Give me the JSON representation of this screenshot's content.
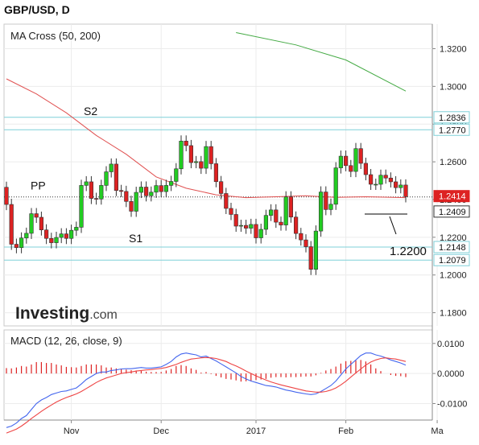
{
  "header": {
    "title": "GBP/USD, D"
  },
  "main_panel": {
    "indicator_label": "MA Cross (50, 200)",
    "watermark_bold": "Investing",
    "watermark_light": ".com"
  },
  "macd_panel": {
    "indicator_label": "MACD (12, 26, close, 9)"
  },
  "colors": {
    "up_candle": "#22cc22",
    "down_candle": "#dd2222",
    "ma50": "#e05050",
    "ma200": "#44aa44",
    "level_line": "#7fd0d8",
    "macd_line": "#4466ee",
    "signal_line": "#ee4444",
    "histogram": "#dd2222",
    "price_badge": "#dd2222"
  },
  "chart_data": [
    {
      "type": "candlestick",
      "title": "GBP/USD, D",
      "indicator": "MA Cross (50, 200)",
      "x_ticks": [
        "Nov",
        "Dec",
        "2017",
        "Feb",
        "Ma"
      ],
      "y_ticks": [
        "1.3200",
        "1.3000",
        "1.2800",
        "1.2600",
        "1.2400",
        "1.2200",
        "1.2000",
        "1.1800"
      ],
      "ylim": [
        1.173,
        1.333
      ],
      "grid": true,
      "closes": [
        1.2374,
        1.2163,
        1.2145,
        1.2196,
        1.2221,
        1.2325,
        1.2306,
        1.2239,
        1.2194,
        1.2171,
        1.2199,
        1.2218,
        1.2194,
        1.2237,
        1.2253,
        1.2475,
        1.2494,
        1.2406,
        1.2403,
        1.2475,
        1.2547,
        1.2588,
        1.2448,
        1.2443,
        1.239,
        1.2338,
        1.2438,
        1.2466,
        1.242,
        1.2439,
        1.2474,
        1.2442,
        1.2475,
        1.2496,
        1.2563,
        1.271,
        1.2686,
        1.2596,
        1.2601,
        1.2566,
        1.2681,
        1.259,
        1.2495,
        1.2432,
        1.2353,
        1.2321,
        1.2259,
        1.2263,
        1.2248,
        1.2268,
        1.2197,
        1.2242,
        1.2316,
        1.2345,
        1.228,
        1.2265,
        1.2414,
        1.2307,
        1.222,
        1.2186,
        1.215,
        1.203,
        1.2233,
        1.244,
        1.2347,
        1.2375,
        1.2568,
        1.263,
        1.258,
        1.2549,
        1.267,
        1.2592,
        1.2532,
        1.2481,
        1.2481,
        1.2529,
        1.2514,
        1.2494,
        1.2463,
        1.2477,
        1.2415
      ],
      "opens": [
        1.2465,
        1.2374,
        1.2163,
        1.2145,
        1.2196,
        1.2221,
        1.2325,
        1.2306,
        1.2239,
        1.2194,
        1.2171,
        1.2199,
        1.2218,
        1.2194,
        1.2237,
        1.2253,
        1.2475,
        1.2494,
        1.2406,
        1.2403,
        1.2475,
        1.2547,
        1.2588,
        1.2448,
        1.2443,
        1.239,
        1.2338,
        1.2438,
        1.2466,
        1.242,
        1.2439,
        1.2474,
        1.2442,
        1.2475,
        1.2496,
        1.2563,
        1.271,
        1.2686,
        1.2596,
        1.2601,
        1.2566,
        1.2681,
        1.259,
        1.2495,
        1.2432,
        1.2353,
        1.2321,
        1.2259,
        1.2263,
        1.2248,
        1.2268,
        1.2197,
        1.2242,
        1.2316,
        1.2345,
        1.228,
        1.2265,
        1.2414,
        1.2307,
        1.222,
        1.2186,
        1.215,
        1.203,
        1.2233,
        1.244,
        1.2347,
        1.2375,
        1.2568,
        1.263,
        1.258,
        1.2549,
        1.267,
        1.2592,
        1.2532,
        1.2481,
        1.2481,
        1.2529,
        1.2514,
        1.2494,
        1.2463,
        1.2477
      ],
      "ma50": [
        {
          "x": 0,
          "y": 1.304
        },
        {
          "x": 6,
          "y": 1.296
        },
        {
          "x": 12,
          "y": 1.286
        },
        {
          "x": 18,
          "y": 1.274
        },
        {
          "x": 24,
          "y": 1.264
        },
        {
          "x": 30,
          "y": 1.252
        },
        {
          "x": 36,
          "y": 1.246
        },
        {
          "x": 42,
          "y": 1.2425
        },
        {
          "x": 48,
          "y": 1.241
        },
        {
          "x": 54,
          "y": 1.2415
        },
        {
          "x": 60,
          "y": 1.242
        },
        {
          "x": 66,
          "y": 1.2412
        },
        {
          "x": 72,
          "y": 1.2415
        },
        {
          "x": 80,
          "y": 1.241
        }
      ],
      "ma200": [
        {
          "x": 46,
          "y": 1.3285
        },
        {
          "x": 58,
          "y": 1.322
        },
        {
          "x": 68,
          "y": 1.314
        },
        {
          "x": 80,
          "y": 1.2975
        }
      ],
      "support_resistance": [
        {
          "label": "S2",
          "value": 1.2836
        },
        {
          "label": "",
          "value": 1.277
        },
        {
          "label": "PP",
          "value": 1.2414
        },
        {
          "label": "S1",
          "value": 1.2148
        },
        {
          "label": "",
          "value": 1.2079
        }
      ],
      "price_labels": [
        "1.2836",
        "1.2770",
        "1.2414",
        "1.2409",
        "1.2148",
        "1.2079"
      ],
      "annotation": "1.2200"
    },
    {
      "type": "line",
      "title": "MACD (12, 26, close, 9)",
      "y_ticks": [
        "0.0100",
        "0.0000",
        "-0.0100"
      ],
      "ylim": [
        -0.0155,
        0.0145
      ],
      "macd": [
        -0.018,
        -0.0175,
        -0.0165,
        -0.015,
        -0.014,
        -0.012,
        -0.01,
        -0.0088,
        -0.008,
        -0.007,
        -0.0065,
        -0.006,
        -0.0058,
        -0.0053,
        -0.0048,
        -0.0035,
        -0.002,
        -0.001,
        0.0,
        0.0005,
        0.0005,
        0.001,
        0.0012,
        0.0015,
        0.0016,
        0.0016,
        0.0018,
        0.002,
        0.0018,
        0.0018,
        0.002,
        0.0022,
        0.003,
        0.004,
        0.0055,
        0.0065,
        0.0068,
        0.0065,
        0.0062,
        0.0055,
        0.0058,
        0.005,
        0.0042,
        0.0032,
        0.0022,
        0.0012,
        0.0002,
        -0.001,
        -0.0018,
        -0.0025,
        -0.003,
        -0.0035,
        -0.004,
        -0.0042,
        -0.0045,
        -0.005,
        -0.0055,
        -0.0058,
        -0.0062,
        -0.0065,
        -0.0068,
        -0.007,
        -0.0068,
        -0.006,
        -0.005,
        -0.004,
        -0.0025,
        -0.0005,
        0.0015,
        0.003,
        0.0045,
        0.006,
        0.0068,
        0.0068,
        0.0062,
        0.0058,
        0.0052,
        0.0045,
        0.004,
        0.0035,
        0.0028
      ],
      "signal": [
        -0.0198,
        -0.0192,
        -0.0185,
        -0.0175,
        -0.0163,
        -0.015,
        -0.0138,
        -0.0126,
        -0.0115,
        -0.0105,
        -0.0095,
        -0.0087,
        -0.008,
        -0.0074,
        -0.0068,
        -0.006,
        -0.005,
        -0.004,
        -0.003,
        -0.0022,
        -0.0015,
        -0.001,
        -0.0005,
        0.0,
        0.0003,
        0.0005,
        0.0008,
        0.001,
        0.0012,
        0.0013,
        0.0015,
        0.0017,
        0.002,
        0.0025,
        0.003,
        0.0037,
        0.0043,
        0.0048,
        0.005,
        0.0052,
        0.0053,
        0.0052,
        0.005,
        0.0045,
        0.004,
        0.0032,
        0.0025,
        0.0017,
        0.0008,
        0.0,
        -0.0008,
        -0.0015,
        -0.0022,
        -0.0028,
        -0.0033,
        -0.0038,
        -0.0042,
        -0.0046,
        -0.005,
        -0.0054,
        -0.0058,
        -0.006,
        -0.0062,
        -0.0062,
        -0.006,
        -0.0055,
        -0.0048,
        -0.0038,
        -0.0026,
        -0.0012,
        0.0002,
        0.0015,
        0.0028,
        0.0038,
        0.0045,
        0.005,
        0.0052,
        0.005,
        0.0048,
        0.0044,
        0.004
      ]
    }
  ]
}
